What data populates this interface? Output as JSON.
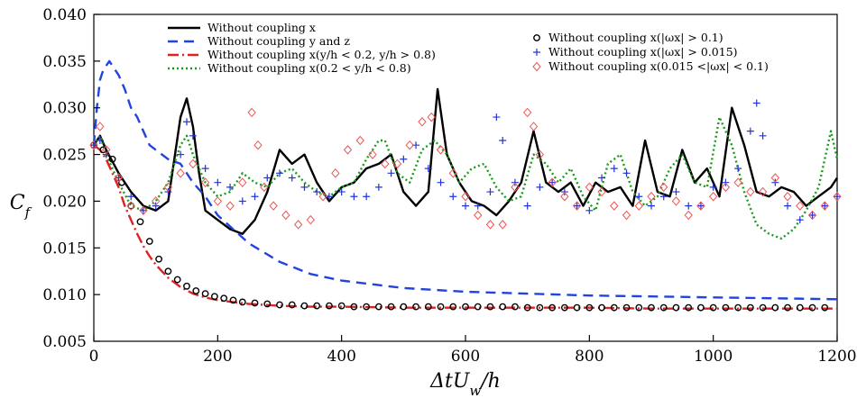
{
  "chart_data": {
    "type": "line",
    "xlabel": "ΔtU_w/h",
    "ylabel": "C_f",
    "xlim": [
      0,
      1200
    ],
    "ylim": [
      0.005,
      0.04
    ],
    "xticks": [
      "0",
      "200",
      "400",
      "600",
      "800",
      "1000",
      "1200"
    ],
    "yticks": [
      "0.005",
      "0.010",
      "0.015",
      "0.020",
      "0.025",
      "0.030",
      "0.035",
      "0.040"
    ],
    "grid": false,
    "legend_left": [
      {
        "series": 0,
        "label": "Without coupling x"
      },
      {
        "series": 1,
        "label": "Without coupling y and z"
      },
      {
        "series": 2,
        "label": "Without coupling x(y/h < 0.2, y/h > 0.8)"
      },
      {
        "series": 3,
        "label": "Without coupling x(0.2 < y/h < 0.8)"
      }
    ],
    "legend_right": [
      {
        "series": 4,
        "label": "Without coupling x(|ωx| > 0.1)"
      },
      {
        "series": 5,
        "label": "Without coupling x(|ωx| > 0.015)"
      },
      {
        "series": 6,
        "label": "Without coupling x(0.015 <|ωx| < 0.1)"
      }
    ],
    "series": [
      {
        "name": "Without coupling x",
        "color": "#000000",
        "style": "solid",
        "x": [
          0,
          10,
          20,
          40,
          60,
          80,
          100,
          120,
          140,
          150,
          160,
          170,
          180,
          200,
          220,
          240,
          260,
          280,
          300,
          320,
          340,
          360,
          380,
          400,
          420,
          440,
          460,
          480,
          500,
          520,
          540,
          555,
          570,
          590,
          610,
          630,
          650,
          670,
          690,
          710,
          730,
          750,
          770,
          790,
          810,
          830,
          850,
          870,
          890,
          910,
          930,
          950,
          970,
          990,
          1010,
          1030,
          1050,
          1070,
          1090,
          1110,
          1130,
          1150,
          1170,
          1190,
          1200
        ],
        "y": [
          0.026,
          0.027,
          0.0255,
          0.023,
          0.021,
          0.0195,
          0.019,
          0.02,
          0.029,
          0.031,
          0.028,
          0.023,
          0.019,
          0.018,
          0.017,
          0.0165,
          0.018,
          0.021,
          0.0255,
          0.024,
          0.025,
          0.022,
          0.02,
          0.0215,
          0.022,
          0.0235,
          0.024,
          0.025,
          0.021,
          0.0195,
          0.021,
          0.032,
          0.025,
          0.022,
          0.02,
          0.0195,
          0.0185,
          0.02,
          0.022,
          0.0275,
          0.022,
          0.021,
          0.022,
          0.0195,
          0.022,
          0.021,
          0.0215,
          0.0195,
          0.0265,
          0.021,
          0.0205,
          0.0255,
          0.022,
          0.0235,
          0.0205,
          0.03,
          0.026,
          0.021,
          0.0205,
          0.0215,
          0.021,
          0.0195,
          0.0205,
          0.0215,
          0.0225
        ]
      },
      {
        "name": "Without coupling y and z",
        "color": "#2244dd",
        "style": "dashed",
        "x": [
          0,
          5,
          10,
          15,
          20,
          25,
          30,
          40,
          50,
          60,
          70,
          80,
          90,
          100,
          120,
          140,
          160,
          180,
          200,
          250,
          300,
          350,
          400,
          500,
          600,
          700,
          800,
          900,
          1000,
          1100,
          1200
        ],
        "y": [
          0.026,
          0.03,
          0.033,
          0.034,
          0.0345,
          0.035,
          0.0345,
          0.0335,
          0.032,
          0.03,
          0.029,
          0.0275,
          0.026,
          0.0255,
          0.0245,
          0.024,
          0.022,
          0.0205,
          0.0185,
          0.0155,
          0.0135,
          0.0122,
          0.0115,
          0.0107,
          0.0103,
          0.0101,
          0.0099,
          0.0098,
          0.0097,
          0.0096,
          0.0095
        ]
      },
      {
        "name": "Without coupling x(y/h < 0.2, y/h > 0.8)",
        "color": "#dd2222",
        "style": "dashdot",
        "x": [
          0,
          10,
          20,
          30,
          40,
          50,
          60,
          70,
          80,
          90,
          100,
          120,
          140,
          160,
          180,
          200,
          250,
          300,
          350,
          400,
          500,
          600,
          700,
          800,
          900,
          1000,
          1100,
          1200
        ],
        "y": [
          0.026,
          0.0255,
          0.0245,
          0.023,
          0.0215,
          0.0195,
          0.018,
          0.0165,
          0.0152,
          0.0141,
          0.0132,
          0.0118,
          0.0108,
          0.0101,
          0.0097,
          0.0094,
          0.009,
          0.0088,
          0.0087,
          0.0087,
          0.0086,
          0.0086,
          0.0086,
          0.0086,
          0.0085,
          0.0085,
          0.0085,
          0.0085
        ]
      },
      {
        "name": "Without coupling x(0.2 < y/h < 0.8)",
        "color": "#1a9a1a",
        "style": "dotted",
        "x": [
          0,
          10,
          20,
          40,
          60,
          80,
          100,
          120,
          140,
          150,
          160,
          180,
          200,
          220,
          240,
          260,
          280,
          300,
          320,
          340,
          360,
          380,
          400,
          420,
          440,
          460,
          470,
          490,
          510,
          530,
          550,
          570,
          590,
          610,
          630,
          650,
          670,
          690,
          710,
          730,
          750,
          770,
          790,
          810,
          830,
          850,
          870,
          890,
          910,
          930,
          950,
          970,
          990,
          1010,
          1030,
          1050,
          1070,
          1090,
          1110,
          1130,
          1150,
          1170,
          1190,
          1200
        ],
        "y": [
          0.026,
          0.027,
          0.025,
          0.022,
          0.0195,
          0.019,
          0.02,
          0.022,
          0.026,
          0.027,
          0.025,
          0.022,
          0.0205,
          0.021,
          0.023,
          0.022,
          0.0215,
          0.023,
          0.0235,
          0.022,
          0.021,
          0.0205,
          0.0215,
          0.022,
          0.0245,
          0.0265,
          0.0265,
          0.023,
          0.022,
          0.0255,
          0.0265,
          0.025,
          0.022,
          0.0235,
          0.024,
          0.0215,
          0.02,
          0.0205,
          0.025,
          0.024,
          0.022,
          0.0235,
          0.0205,
          0.019,
          0.024,
          0.025,
          0.021,
          0.0195,
          0.0205,
          0.0235,
          0.025,
          0.022,
          0.0215,
          0.029,
          0.026,
          0.021,
          0.0175,
          0.0165,
          0.016,
          0.017,
          0.019,
          0.0215,
          0.0275,
          0.0245
        ]
      },
      {
        "name": "Without coupling x(|ωx| > 0.1)",
        "color": "#000000",
        "style": "marker-circle",
        "x": [
          0,
          15,
          30,
          45,
          60,
          75,
          90,
          105,
          120,
          135,
          150,
          165,
          180,
          195,
          210,
          225,
          240,
          260,
          280,
          300,
          320,
          340,
          360,
          380,
          400,
          420,
          440,
          460,
          480,
          500,
          520,
          540,
          560,
          580,
          600,
          620,
          640,
          660,
          680,
          700,
          720,
          740,
          760,
          780,
          800,
          820,
          840,
          860,
          880,
          900,
          920,
          940,
          960,
          980,
          1000,
          1020,
          1040,
          1060,
          1080,
          1100,
          1120,
          1140,
          1160,
          1180
        ],
        "y": [
          0.026,
          0.0255,
          0.0245,
          0.022,
          0.0195,
          0.0178,
          0.0157,
          0.0138,
          0.0125,
          0.0116,
          0.0109,
          0.0104,
          0.0101,
          0.0098,
          0.0096,
          0.0094,
          0.0092,
          0.0091,
          0.009,
          0.0089,
          0.0089,
          0.0088,
          0.0088,
          0.0088,
          0.0088,
          0.0087,
          0.0087,
          0.0087,
          0.0087,
          0.0087,
          0.0087,
          0.0087,
          0.0087,
          0.0087,
          0.0087,
          0.0087,
          0.0087,
          0.0087,
          0.0087,
          0.0086,
          0.0086,
          0.0086,
          0.0086,
          0.0086,
          0.0086,
          0.0086,
          0.0086,
          0.0086,
          0.0086,
          0.0086,
          0.0086,
          0.0086,
          0.0086,
          0.0086,
          0.0086,
          0.0086,
          0.0086,
          0.0086,
          0.0086,
          0.0086,
          0.0086,
          0.0086,
          0.0086,
          0.0086
        ]
      },
      {
        "name": "Without coupling x(|ωx| > 0.015)",
        "color": "#2233dd",
        "style": "marker-plus",
        "x": [
          0,
          10,
          20,
          40,
          60,
          80,
          100,
          120,
          140,
          150,
          160,
          180,
          200,
          220,
          240,
          260,
          280,
          300,
          320,
          340,
          360,
          380,
          400,
          420,
          440,
          460,
          480,
          500,
          520,
          540,
          560,
          580,
          600,
          620,
          640,
          650,
          660,
          680,
          700,
          720,
          740,
          760,
          780,
          800,
          820,
          840,
          860,
          880,
          900,
          920,
          940,
          960,
          980,
          1000,
          1020,
          1040,
          1060,
          1070,
          1080,
          1100,
          1120,
          1140,
          1160,
          1180,
          1200
        ],
        "y": [
          0.026,
          0.0265,
          0.025,
          0.0225,
          0.0205,
          0.019,
          0.0195,
          0.021,
          0.025,
          0.0285,
          0.027,
          0.0235,
          0.022,
          0.0215,
          0.02,
          0.0205,
          0.0225,
          0.023,
          0.0225,
          0.0215,
          0.021,
          0.0205,
          0.021,
          0.0205,
          0.0205,
          0.0215,
          0.023,
          0.0245,
          0.026,
          0.0235,
          0.022,
          0.0205,
          0.0195,
          0.0195,
          0.021,
          0.029,
          0.0265,
          0.022,
          0.0195,
          0.0215,
          0.022,
          0.021,
          0.0195,
          0.019,
          0.0225,
          0.0235,
          0.023,
          0.0205,
          0.0195,
          0.0205,
          0.021,
          0.0195,
          0.0195,
          0.0215,
          0.022,
          0.0235,
          0.0275,
          0.0305,
          0.027,
          0.022,
          0.0195,
          0.018,
          0.0185,
          0.0195,
          0.0205
        ]
      },
      {
        "name": "Without coupling x(0.015 <|ωx| < 0.1)",
        "color": "#ee5555",
        "style": "marker-diamond",
        "x": [
          0,
          10,
          20,
          40,
          60,
          80,
          100,
          120,
          140,
          160,
          180,
          200,
          220,
          240,
          255,
          265,
          275,
          290,
          310,
          330,
          350,
          370,
          390,
          410,
          430,
          450,
          470,
          490,
          510,
          530,
          545,
          560,
          580,
          600,
          620,
          640,
          660,
          680,
          700,
          710,
          720,
          740,
          760,
          780,
          800,
          820,
          840,
          860,
          880,
          900,
          920,
          940,
          960,
          980,
          1000,
          1020,
          1040,
          1060,
          1080,
          1100,
          1120,
          1140,
          1160,
          1180,
          1200
        ],
        "y": [
          0.026,
          0.028,
          0.0255,
          0.0225,
          0.0195,
          0.019,
          0.02,
          0.0215,
          0.023,
          0.024,
          0.022,
          0.02,
          0.0195,
          0.022,
          0.0295,
          0.026,
          0.0215,
          0.0195,
          0.0185,
          0.0175,
          0.018,
          0.0205,
          0.023,
          0.0255,
          0.0265,
          0.025,
          0.024,
          0.024,
          0.026,
          0.0285,
          0.029,
          0.0255,
          0.023,
          0.0205,
          0.0185,
          0.0175,
          0.0175,
          0.0215,
          0.0295,
          0.028,
          0.025,
          0.022,
          0.0205,
          0.0195,
          0.0215,
          0.021,
          0.0195,
          0.0185,
          0.0195,
          0.0205,
          0.0215,
          0.02,
          0.0185,
          0.0195,
          0.0205,
          0.0215,
          0.022,
          0.021,
          0.021,
          0.0225,
          0.0205,
          0.0195,
          0.0185,
          0.0195,
          0.0205
        ]
      }
    ]
  }
}
